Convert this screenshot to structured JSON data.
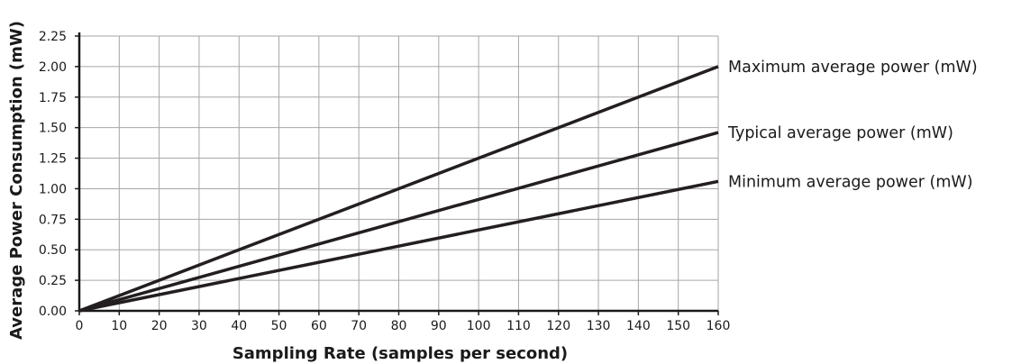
{
  "chart_data": {
    "type": "line",
    "title": "",
    "xlabel": "Sampling Rate (samples per second)",
    "ylabel": "Average Power Consumption (mW)",
    "xlim": [
      0,
      160
    ],
    "ylim": [
      0,
      2.25
    ],
    "x_ticks": [
      "0",
      "10",
      "20",
      "30",
      "40",
      "50",
      "60",
      "70",
      "80",
      "90",
      "100",
      "110",
      "120",
      "130",
      "140",
      "150",
      "160"
    ],
    "y_ticks": [
      "0.00",
      "0.25",
      "0.50",
      "0.75",
      "1.00",
      "1.25",
      "1.50",
      "1.75",
      "2.00",
      "2.25"
    ],
    "grid": true,
    "series": [
      {
        "name": "Maximum average power (mW)",
        "x": [
          0,
          160
        ],
        "y": [
          0,
          2.0
        ]
      },
      {
        "name": "Typical average power (mW)",
        "x": [
          0,
          160
        ],
        "y": [
          0,
          1.46
        ]
      },
      {
        "name": "Minimum average power (mW)",
        "x": [
          0,
          160
        ],
        "y": [
          0,
          1.06
        ]
      }
    ],
    "colors": {
      "line": "#231f20",
      "grid": "#a6a6a6",
      "axis": "#1a1a1a",
      "text": "#1a1a1a"
    }
  }
}
